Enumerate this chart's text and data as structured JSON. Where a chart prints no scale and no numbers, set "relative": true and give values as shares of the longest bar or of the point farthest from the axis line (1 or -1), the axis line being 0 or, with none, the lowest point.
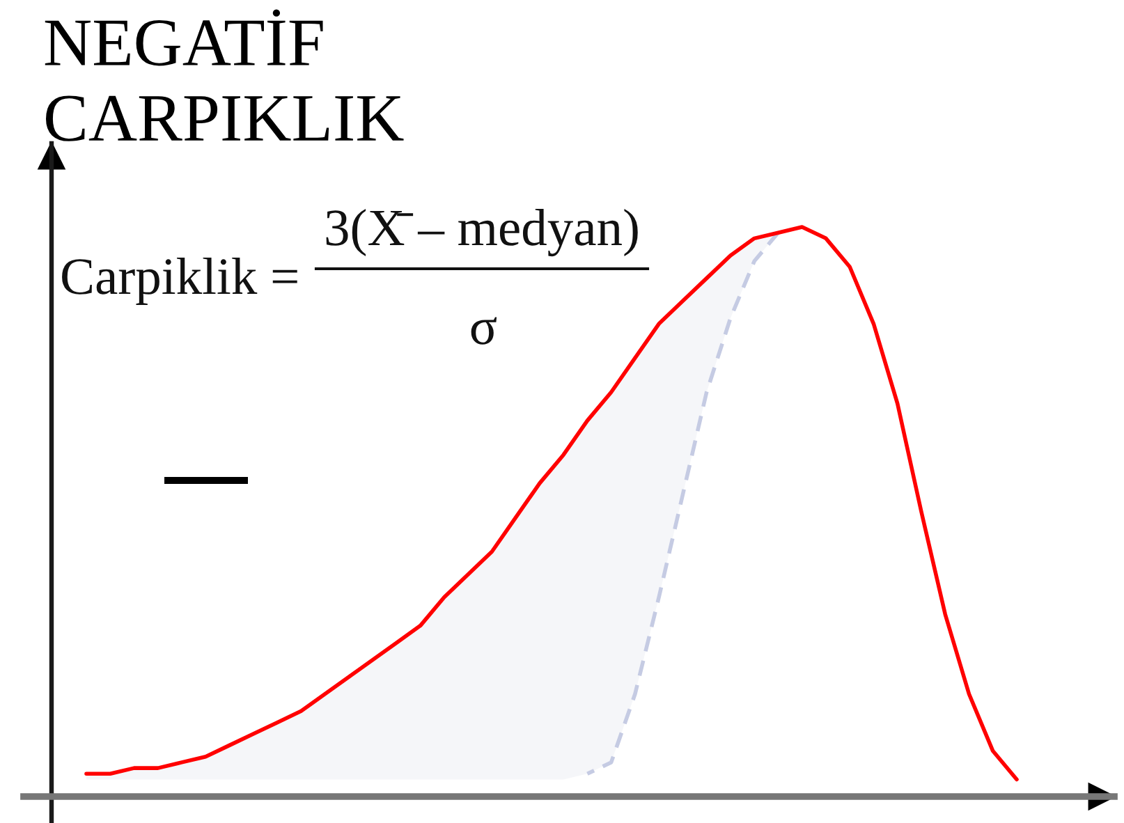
{
  "chart_data": {
    "type": "line",
    "title": "NEGATİF\nCARPIKLIK",
    "relative": true,
    "annotations": [
      "Carpiklik =",
      "3(X̄ – medyan)",
      "σ"
    ],
    "categories": [
      null,
      null,
      null,
      null,
      null,
      null,
      null,
      null,
      null,
      null,
      null,
      null,
      null,
      null,
      null,
      null,
      null,
      null,
      null,
      null,
      null,
      null,
      null,
      null,
      null,
      null,
      null,
      null,
      null,
      null,
      null,
      null,
      null,
      null,
      null,
      null,
      null,
      null,
      null,
      null
    ],
    "series": [
      {
        "color": "#c5cbe3",
        "line_style": "dashed",
        "values": [
          null,
          null,
          null,
          null,
          null,
          null,
          null,
          null,
          null,
          null,
          null,
          null,
          null,
          null,
          null,
          null,
          null,
          null,
          null,
          null,
          null,
          0.04,
          0.06,
          0.18,
          0.35,
          0.53,
          0.71,
          0.84,
          0.94,
          0.99,
          null,
          null,
          null,
          null,
          null,
          null,
          null,
          null,
          null,
          null
        ]
      },
      {
        "color": "#ff0000",
        "line_style": "solid",
        "values": [
          0.04,
          0.04,
          0.05,
          0.05,
          0.06,
          0.07,
          0.09,
          0.11,
          0.13,
          0.15,
          0.18,
          0.21,
          0.24,
          0.27,
          0.3,
          0.35,
          0.39,
          0.43,
          0.49,
          0.55,
          0.6,
          0.66,
          0.71,
          0.77,
          0.83,
          0.87,
          0.91,
          0.95,
          0.98,
          0.99,
          1.0,
          0.98,
          0.93,
          0.83,
          0.69,
          0.5,
          0.32,
          0.18,
          0.08,
          0.03
        ],
        "lower": [
          0.03,
          0.03,
          0.03,
          0.03,
          0.03,
          0.03,
          0.03,
          0.03,
          0.03,
          0.03,
          0.03,
          0.03,
          0.03,
          0.03,
          0.03,
          0.03,
          0.03,
          0.03,
          0.03,
          0.03,
          0.03,
          0.04,
          0.06,
          0.18,
          0.35,
          0.53,
          0.71,
          0.84,
          0.94,
          0.99,
          null,
          null,
          null,
          null,
          null,
          null,
          null,
          null,
          null,
          null
        ],
        "upper": [
          0.04,
          0.04,
          0.05,
          0.05,
          0.06,
          0.07,
          0.09,
          0.11,
          0.13,
          0.15,
          0.18,
          0.21,
          0.24,
          0.27,
          0.3,
          0.35,
          0.39,
          0.43,
          0.49,
          0.55,
          0.6,
          0.66,
          0.71,
          0.77,
          0.83,
          0.87,
          0.91,
          0.95,
          0.98,
          0.99,
          null,
          null,
          null,
          null,
          null,
          null,
          null,
          null,
          null,
          null
        ]
      }
    ]
  }
}
